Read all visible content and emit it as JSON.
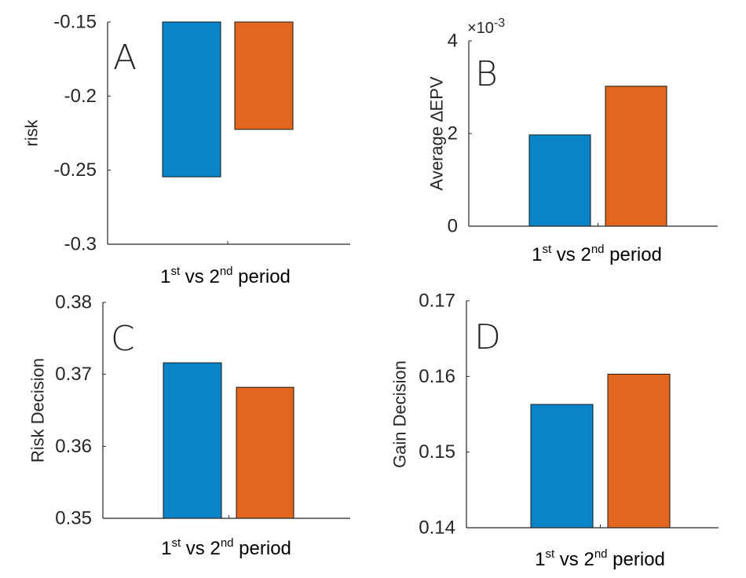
{
  "colors": {
    "first": "#0a84c8",
    "second": "#e2661e",
    "axis": "#262626",
    "bar_edge": "#1a1a1a"
  },
  "chart_data": [
    {
      "type": "bar",
      "letter": "A",
      "ylabel": "risk",
      "xlabel": {
        "pre": "1",
        "sup1": "st",
        "mid": " vs 2",
        "sup2": "nd",
        "post": " period"
      },
      "ylim": [
        -0.3,
        -0.15
      ],
      "ticks": [
        -0.3,
        -0.25,
        -0.2,
        -0.15
      ],
      "tick_labels": [
        "-0.3",
        "-0.25",
        "-0.2",
        "-0.15"
      ],
      "exponent_label": "",
      "values": [
        -0.2545,
        -0.2225
      ]
    },
    {
      "type": "bar",
      "letter": "B",
      "ylabel": "Average ∆EPV",
      "xlabel": {
        "pre": "1",
        "sup1": "st",
        "mid": " vs 2",
        "sup2": "nd",
        "post": " period"
      },
      "ylim": [
        0,
        0.004
      ],
      "ticks": [
        0,
        0.002,
        0.004
      ],
      "tick_labels": [
        "0",
        "2",
        "4"
      ],
      "exponent_label": "×10",
      "exponent_power": "-3",
      "values": [
        0.00197,
        0.00302
      ]
    },
    {
      "type": "bar",
      "letter": "C",
      "ylabel": "Risk Decision",
      "xlabel": {
        "pre": "1",
        "sup1": "st",
        "mid": " vs 2",
        "sup2": "nd",
        "post": " period"
      },
      "ylim": [
        0.35,
        0.38
      ],
      "ticks": [
        0.35,
        0.36,
        0.37,
        0.38
      ],
      "tick_labels": [
        "0.35",
        "0.36",
        "0.37",
        "0.38"
      ],
      "exponent_label": "",
      "values": [
        0.3716,
        0.3682
      ]
    },
    {
      "type": "bar",
      "letter": "D",
      "ylabel": "Gain Decision",
      "xlabel": {
        "pre": "1",
        "sup1": "st",
        "mid": " vs 2",
        "sup2": "nd",
        "post": " period"
      },
      "ylim": [
        0.14,
        0.17
      ],
      "ticks": [
        0.14,
        0.15,
        0.16,
        0.17
      ],
      "tick_labels": [
        "0.14",
        "0.15",
        "0.16",
        "0.17"
      ],
      "exponent_label": "",
      "values": [
        0.1563,
        0.1603
      ]
    }
  ]
}
